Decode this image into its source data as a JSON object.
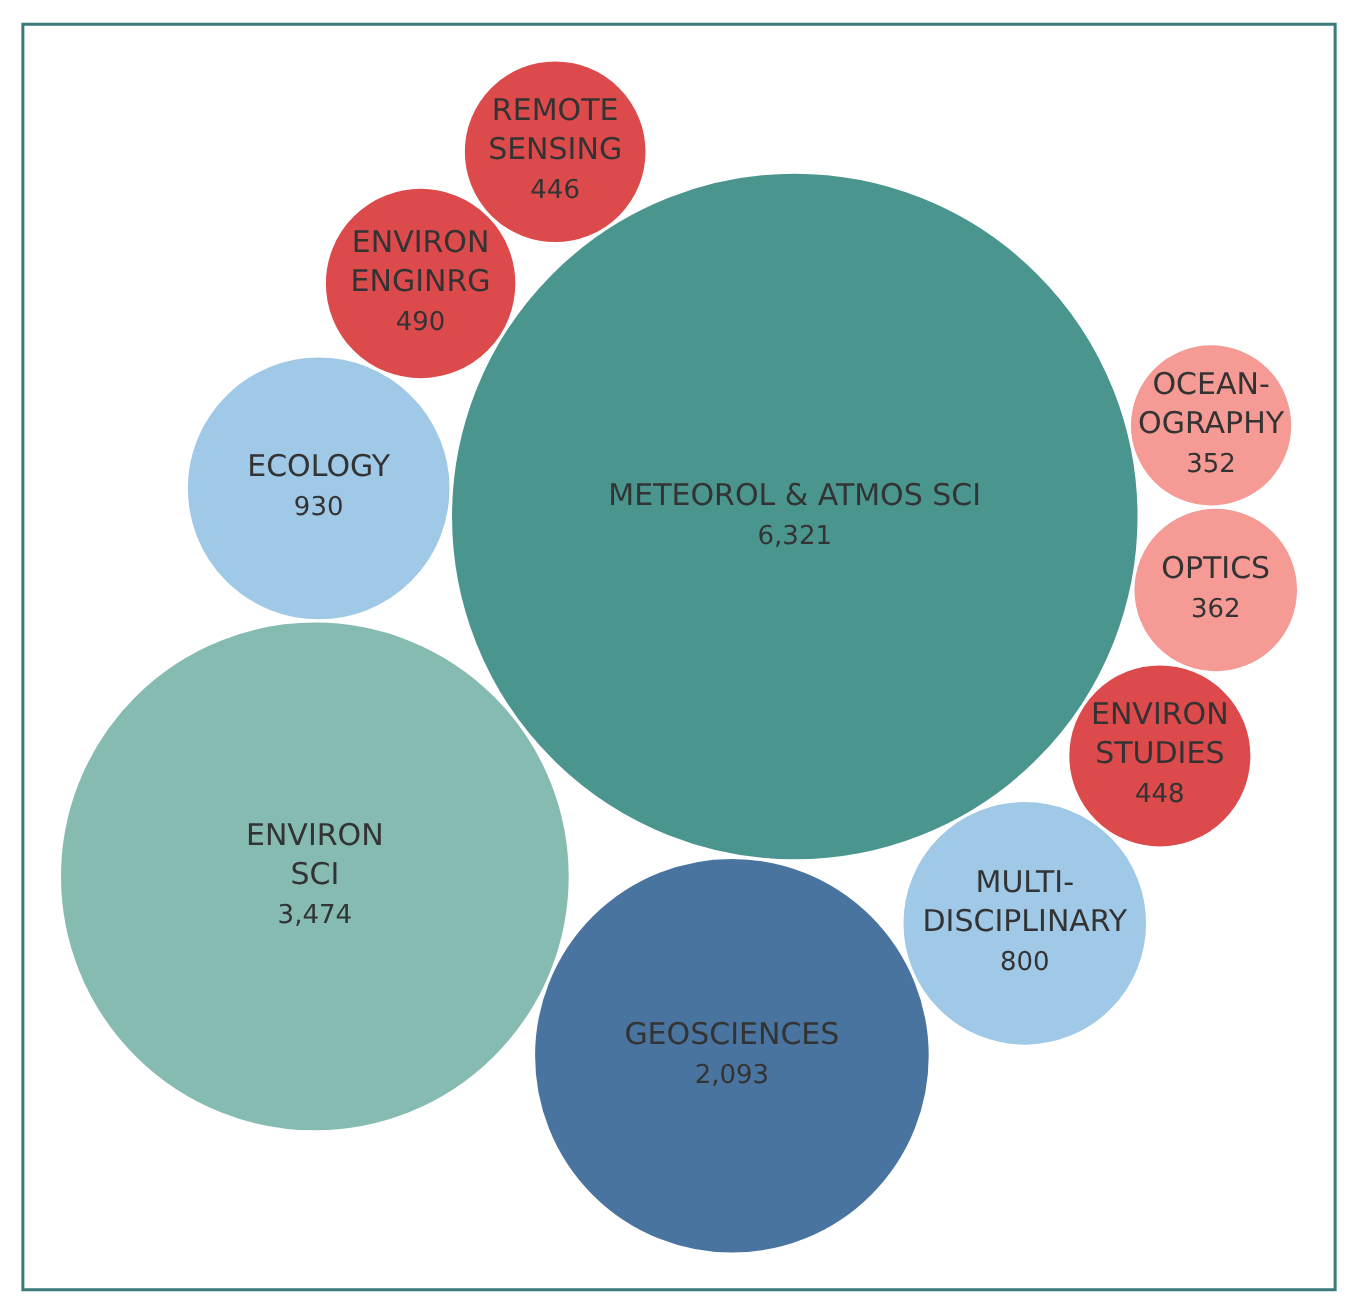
{
  "chart_data": {
    "type": "other",
    "categories": [
      "METEOROL & ATMOS SCI",
      "ENVIRON\nSCI",
      "GEOSCIENCES",
      "ECOLOGY",
      "MULTI-\nDISCIPLINARY",
      "ENVIRON\nENGINRG",
      "ENVIRON\nSTUDIES",
      "REMOTE\nSENSING",
      "OPTICS",
      "OCEAN-\nOGRAPHY"
    ],
    "values": [
      6321,
      3474,
      2093,
      930,
      800,
      490,
      448,
      446,
      362,
      352
    ],
    "value_labels": [
      "6,321",
      "3,474",
      "2,093",
      "930",
      "800",
      "490",
      "448",
      "446",
      "362",
      "352"
    ],
    "colors": [
      "#4a968f",
      "#86bbb2",
      "#4a74a0",
      "#a0c9e8",
      "#a0c9e8",
      "#dc4a4c",
      "#dc4a4c",
      "#dc4a4c",
      "#f59a94",
      "#f59a94"
    ]
  }
}
